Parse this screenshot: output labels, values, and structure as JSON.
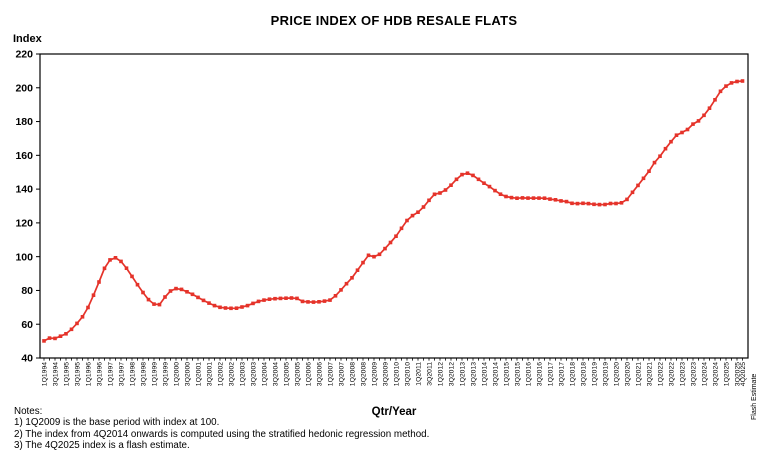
{
  "title": "PRICE INDEX OF HDB RESALE FLATS",
  "y_axis_title": "Index",
  "x_axis_title": "Qtr/Year",
  "flash_estimate_label": "Flash Estimate",
  "notes": {
    "heading": "Notes:",
    "items": [
      "1) 1Q2009 is the base period with index at 100.",
      "2) The index from 4Q2014 onwards is computed using the stratified hedonic regression method.",
      "3) The 4Q2025 index is a flash estimate."
    ]
  },
  "chart_data": {
    "type": "line",
    "title": "PRICE INDEX OF HDB RESALE FLATS",
    "xlabel": "Qtr/Year",
    "ylabel": "Index",
    "ylim": [
      40,
      220
    ],
    "y_ticks": [
      40,
      60,
      80,
      100,
      120,
      140,
      160,
      180,
      200,
      220
    ],
    "grid": false,
    "legend": "none",
    "line_color": "#e5332a",
    "marker": "square",
    "x_tick_label_every": 2,
    "last_point_labeled": true,
    "last_point_note": "Flash Estimate",
    "x": [
      "1Q1994",
      "2Q1994",
      "3Q1994",
      "4Q1994",
      "1Q1995",
      "2Q1995",
      "3Q1995",
      "4Q1995",
      "1Q1996",
      "2Q1996",
      "3Q1996",
      "4Q1996",
      "1Q1997",
      "2Q1997",
      "3Q1997",
      "4Q1997",
      "1Q1998",
      "2Q1998",
      "3Q1998",
      "4Q1998",
      "1Q1999",
      "2Q1999",
      "3Q1999",
      "4Q1999",
      "1Q2000",
      "2Q2000",
      "3Q2000",
      "4Q2000",
      "1Q2001",
      "2Q2001",
      "3Q2001",
      "4Q2001",
      "1Q2002",
      "2Q2002",
      "3Q2002",
      "4Q2002",
      "1Q2003",
      "2Q2003",
      "3Q2003",
      "4Q2003",
      "1Q2004",
      "2Q2004",
      "3Q2004",
      "4Q2004",
      "1Q2005",
      "2Q2005",
      "3Q2005",
      "4Q2005",
      "1Q2006",
      "2Q2006",
      "3Q2006",
      "4Q2006",
      "1Q2007",
      "2Q2007",
      "3Q2007",
      "4Q2007",
      "1Q2008",
      "2Q2008",
      "3Q2008",
      "4Q2008",
      "1Q2009",
      "2Q2009",
      "3Q2009",
      "4Q2009",
      "1Q2010",
      "2Q2010",
      "3Q2010",
      "4Q2010",
      "1Q2011",
      "2Q2011",
      "3Q2011",
      "4Q2011",
      "1Q2012",
      "2Q2012",
      "3Q2012",
      "4Q2012",
      "1Q2013",
      "2Q2013",
      "3Q2013",
      "4Q2013",
      "1Q2014",
      "2Q2014",
      "3Q2014",
      "4Q2014",
      "1Q2015",
      "2Q2015",
      "3Q2015",
      "4Q2015",
      "1Q2016",
      "2Q2016",
      "3Q2016",
      "4Q2016",
      "1Q2017",
      "2Q2017",
      "3Q2017",
      "4Q2017",
      "1Q2018",
      "2Q2018",
      "3Q2018",
      "4Q2018",
      "1Q2019",
      "2Q2019",
      "3Q2019",
      "4Q2019",
      "1Q2020",
      "2Q2020",
      "3Q2020",
      "4Q2020",
      "1Q2021",
      "2Q2021",
      "3Q2021",
      "4Q2021",
      "1Q2022",
      "2Q2022",
      "3Q2022",
      "4Q2022",
      "1Q2023",
      "2Q2023",
      "3Q2023",
      "4Q2023",
      "1Q2024",
      "2Q2024",
      "3Q2024",
      "4Q2024",
      "1Q2025",
      "2Q2025",
      "3Q2025",
      "4Q2025"
    ],
    "values": [
      50.1,
      51.8,
      51.6,
      52.9,
      54.3,
      57.0,
      60.5,
      64.4,
      69.9,
      77.2,
      85.0,
      93.1,
      98.1,
      99.3,
      97.2,
      93.2,
      88.3,
      83.4,
      78.8,
      74.6,
      71.9,
      71.6,
      76.1,
      79.7,
      81.1,
      80.6,
      79.2,
      77.7,
      75.9,
      74.1,
      72.5,
      71.0,
      70.0,
      69.6,
      69.4,
      69.5,
      70.2,
      71.0,
      72.3,
      73.5,
      74.3,
      74.8,
      75.1,
      75.3,
      75.4,
      75.5,
      75.3,
      73.5,
      73.2,
      73.1,
      73.3,
      73.7,
      74.3,
      76.8,
      80.3,
      84.0,
      87.5,
      92.0,
      96.5,
      100.8,
      100.0,
      101.4,
      104.8,
      108.4,
      112.1,
      116.8,
      121.4,
      124.3,
      126.3,
      129.4,
      133.4,
      136.9,
      137.7,
      139.5,
      142.3,
      145.8,
      148.6,
      149.4,
      148.1,
      145.8,
      143.5,
      141.5,
      139.1,
      137.0,
      135.6,
      135.0,
      134.6,
      134.8,
      134.7,
      134.7,
      134.7,
      134.6,
      134.1,
      133.7,
      133.0,
      132.6,
      131.6,
      131.4,
      131.6,
      131.4,
      131.0,
      130.8,
      130.9,
      131.5,
      131.5,
      131.9,
      133.9,
      138.1,
      142.2,
      146.4,
      150.6,
      155.7,
      159.5,
      163.9,
      168.1,
      171.9,
      173.5,
      175.3,
      178.5,
      180.4,
      183.7,
      187.9,
      192.9,
      197.9,
      201.0,
      202.9,
      203.7,
      204.0
    ]
  }
}
